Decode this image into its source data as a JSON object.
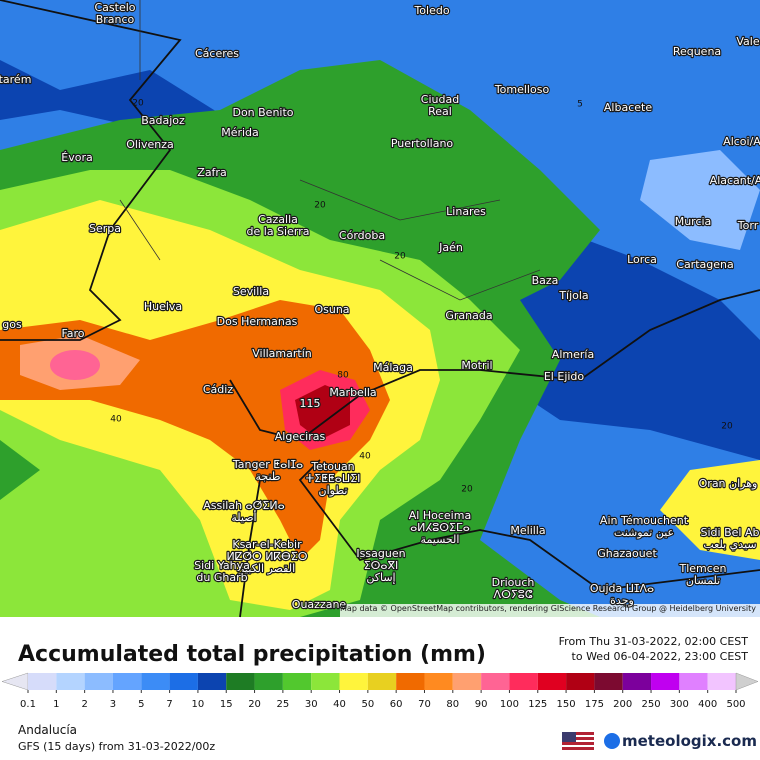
{
  "map": {
    "places": [
      [
        "Castelo",
        "Branco"
      ],
      [
        "Toledo"
      ],
      [
        "Cáceres"
      ],
      [
        "Requena"
      ],
      [
        "Vale"
      ],
      [
        "tarém"
      ],
      [
        "Tomelloso"
      ],
      [
        "Ciudad",
        "Real"
      ],
      [
        "Albacete"
      ],
      [
        "Don Benito"
      ],
      [
        "Badajoz"
      ],
      [
        "Mérida"
      ],
      [
        "Alcoi/A"
      ],
      [
        "Puertollano"
      ],
      [
        "Olivenza"
      ],
      [
        "Évora"
      ],
      [
        "Zafra"
      ],
      [
        "Alacant/A"
      ],
      [
        "Linares"
      ],
      [
        "Murcia"
      ],
      [
        "Cazalla",
        "de la Sierra"
      ],
      [
        "Torr"
      ],
      [
        "Serpa"
      ],
      [
        "Córdoba"
      ],
      [
        "Jaén"
      ],
      [
        "Lorca"
      ],
      [
        "Cartagena"
      ],
      [
        "Baza"
      ],
      [
        "Sevilla"
      ],
      [
        "Tíjola"
      ],
      [
        "Huelva"
      ],
      [
        "Osuna"
      ],
      [
        "Granada"
      ],
      [
        "Dos Hermanas"
      ],
      [
        "gos"
      ],
      [
        "Faro"
      ],
      [
        "Villamartín"
      ],
      [
        "Almería"
      ],
      [
        "Motril"
      ],
      [
        "Málaga"
      ],
      [
        "El Ejido"
      ],
      [
        "Cádiz"
      ],
      [
        "Marbella"
      ],
      [
        "Algeciras"
      ],
      [
        "Tanger ⵟⴰⵏⵊⴰ",
        "طنجة"
      ],
      [
        "Tetouan",
        "ⵜⵉⵟⵟⴰⵡⵉⵏ",
        "تطوان"
      ],
      [
        "Oran وهران"
      ],
      [
        "Assilah ⴰⵚⵉⵍⴰ",
        "أصيلة"
      ],
      [
        "Al Hoceima",
        "ⴰⵍⵃⵓⵙⵉⵎⴰ",
        "الحسيمة"
      ],
      [
        "Ain Témouchent",
        "عين تموشنت"
      ],
      [
        "Melilla"
      ],
      [
        "Sidi Bel Ab",
        "سيدي بلعب"
      ],
      [
        "Ksar-el-Kebir",
        "ⵍⵇⵚⵔ ⵍⴽⴱⵉⵔ",
        "القصر الكبير"
      ],
      [
        "Issaguen",
        "ⵉⵙⴰⴳⵏ",
        "إساكن"
      ],
      [
        "Ghazaouet"
      ],
      [
        "Tlemcen",
        "تلمسان"
      ],
      [
        "Driouch",
        "ⴷⵔⵢⵓⵛ"
      ],
      [
        "Oujda ⵡⵊⴷⴰ",
        "وجدة"
      ],
      [
        "Sidi Yahya",
        "du Gharb"
      ],
      [
        "Ouazzane"
      ]
    ],
    "contours": [
      20,
      5,
      20,
      20,
      80,
      40,
      40,
      20,
      20
    ],
    "max_label": 115,
    "attribution": "Map data © OpenStreetMap contributors, rendering GIScience Research Group @ Heidelberg University"
  },
  "legend": {
    "title": "Accumulated total precipitation (mm)",
    "from": "From Thu 31-03-2022, 02:00 CEST",
    "to": "to Wed 06-04-2022, 23:00 CEST",
    "values": [
      0.1,
      1,
      2,
      3,
      5,
      7,
      10,
      15,
      20,
      25,
      30,
      40,
      50,
      60,
      70,
      80,
      90,
      100,
      125,
      150,
      175,
      200,
      250,
      300,
      400,
      500
    ],
    "colors": [
      "#e6e6f2",
      "#d6dcfa",
      "#b4d4ff",
      "#8cbcff",
      "#64a4ff",
      "#3c8cf6",
      "#1c6ee6",
      "#0c44b0",
      "#1e7c24",
      "#2ea02c",
      "#52c82e",
      "#8ce63a",
      "#fff43c",
      "#e8d020",
      "#f06a00",
      "#ff8a20",
      "#ffa070",
      "#ff6494",
      "#ff2c5c",
      "#e00020",
      "#b00014",
      "#7c0a30",
      "#7c009c",
      "#c000f0",
      "#e080ff",
      "#f2c4ff",
      "#cfcfcf"
    ],
    "region": "Andalucía",
    "model": "GFS (15 days) from 31-03-2022/00z",
    "brand": "meteologix.com"
  }
}
